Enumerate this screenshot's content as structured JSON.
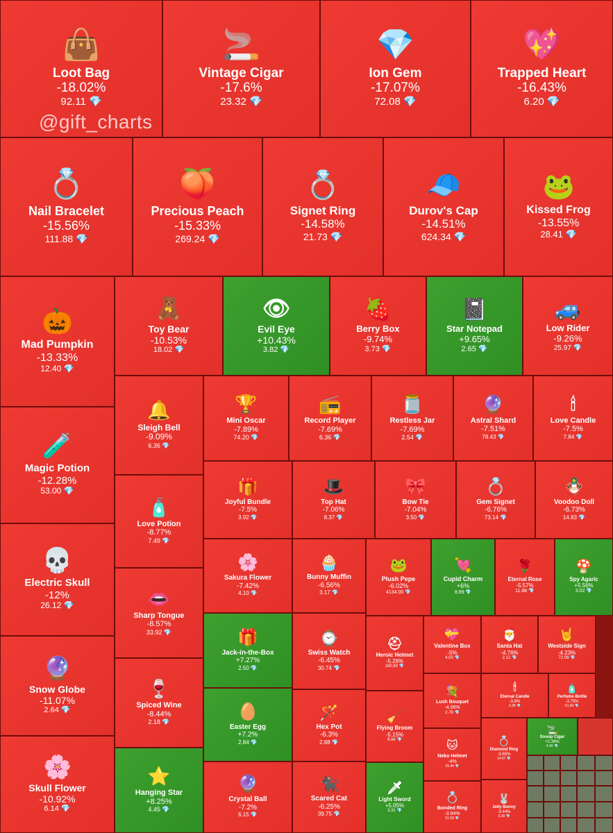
{
  "watermark": "@gift_charts",
  "colors": {
    "negative": "#e3302a",
    "positive": "#2f8f24",
    "currency_icon": "#6fd3ff"
  },
  "currency_glyph": "💎",
  "chart_data": {
    "type": "treemap",
    "title": "",
    "metric": "change_percent",
    "items": [
      {
        "name": "Loot Bag",
        "change": "-18.02%",
        "price": "92.11",
        "icon": "👜",
        "trend": "neg"
      },
      {
        "name": "Vintage Cigar",
        "change": "-17.6%",
        "price": "23.32",
        "icon": "🚬",
        "trend": "neg"
      },
      {
        "name": "Ion Gem",
        "change": "-17.07%",
        "price": "72.08",
        "icon": "💎",
        "trend": "neg"
      },
      {
        "name": "Trapped Heart",
        "change": "-16.43%",
        "price": "6.20",
        "icon": "💖",
        "trend": "neg"
      },
      {
        "name": "Nail Bracelet",
        "change": "-15.56%",
        "price": "111.88",
        "icon": "💍",
        "trend": "neg"
      },
      {
        "name": "Precious Peach",
        "change": "-15.33%",
        "price": "269.24",
        "icon": "🍑",
        "trend": "neg"
      },
      {
        "name": "Signet Ring",
        "change": "-14.58%",
        "price": "21.73",
        "icon": "💍",
        "trend": "neg"
      },
      {
        "name": "Durov's Cap",
        "change": "-14.51%",
        "price": "624.34",
        "icon": "🧢",
        "trend": "neg"
      },
      {
        "name": "Kissed Frog",
        "change": "-13.55%",
        "price": "28.41",
        "icon": "🐸",
        "trend": "neg"
      },
      {
        "name": "Mad Pumpkin",
        "change": "-13.33%",
        "price": "12.40",
        "icon": "🎃",
        "trend": "neg"
      },
      {
        "name": "Toy Bear",
        "change": "-10.53%",
        "price": "18.02",
        "icon": "🧸",
        "trend": "neg"
      },
      {
        "name": "Evil Eye",
        "change": "+10.43%",
        "price": "3.82",
        "icon": "👁",
        "trend": "pos"
      },
      {
        "name": "Berry Box",
        "change": "-9.74%",
        "price": "3.73",
        "icon": "🍓",
        "trend": "neg"
      },
      {
        "name": "Star Notepad",
        "change": "+9.65%",
        "price": "2.65",
        "icon": "📓",
        "trend": "pos"
      },
      {
        "name": "Low Rider",
        "change": "-9.26%",
        "price": "25.97",
        "icon": "🚙",
        "trend": "neg"
      },
      {
        "name": "Magic Potion",
        "change": "-12.28%",
        "price": "53.00",
        "icon": "🧪",
        "trend": "neg"
      },
      {
        "name": "Sleigh Bell",
        "change": "-9.09%",
        "price": "6.36",
        "icon": "🔔",
        "trend": "neg"
      },
      {
        "name": "Mini Oscar",
        "change": "-7.89%",
        "price": "74.20",
        "icon": "🏆",
        "trend": "neg"
      },
      {
        "name": "Record Player",
        "change": "-7.69%",
        "price": "6.36",
        "icon": "📻",
        "trend": "neg"
      },
      {
        "name": "Restless Jar",
        "change": "-7.69%",
        "price": "2.54",
        "icon": "🫙",
        "trend": "neg"
      },
      {
        "name": "Astral Shard",
        "change": "-7.51%",
        "price": "78.43",
        "icon": "🔮",
        "trend": "neg"
      },
      {
        "name": "Love Candle",
        "change": "-7.5%",
        "price": "7.84",
        "icon": "🕯",
        "trend": "neg"
      },
      {
        "name": "Love Potion",
        "change": "-8.77%",
        "price": "7.49",
        "icon": "🧴",
        "trend": "neg"
      },
      {
        "name": "Joyful Bundle",
        "change": "-7.5%",
        "price": "3.92",
        "icon": "🎁",
        "trend": "neg"
      },
      {
        "name": "Top Hat",
        "change": "-7.06%",
        "price": "8.37",
        "icon": "🎩",
        "trend": "neg"
      },
      {
        "name": "Bow Tie",
        "change": "-7.04%",
        "price": "3.50",
        "icon": "🎀",
        "trend": "neg"
      },
      {
        "name": "Gem Signet",
        "change": "-6.76%",
        "price": "73.14",
        "icon": "💍",
        "trend": "neg"
      },
      {
        "name": "Voodoo Doll",
        "change": "-6.73%",
        "price": "14.83",
        "icon": "🪆",
        "trend": "neg"
      },
      {
        "name": "Electric Skull",
        "change": "-12%",
        "price": "26.12",
        "icon": "💀",
        "trend": "neg"
      },
      {
        "name": "Sharp Tongue",
        "change": "-8.57%",
        "price": "33.92",
        "icon": "👄",
        "trend": "neg"
      },
      {
        "name": "Sakura Flower",
        "change": "-7.42%",
        "price": "4.10",
        "icon": "🌸",
        "trend": "neg"
      },
      {
        "name": "Bunny Muffin",
        "change": "-6.56%",
        "price": "3.17",
        "icon": "🧁",
        "trend": "neg"
      },
      {
        "name": "Plush Pepe",
        "change": "-6.02%",
        "price": "4134.00",
        "icon": "🐸",
        "trend": "neg"
      },
      {
        "name": "Cupid Charm",
        "change": "+6%",
        "price": "8.99",
        "icon": "💘",
        "trend": "pos"
      },
      {
        "name": "Eternal Rose",
        "change": "-5.57%",
        "price": "11.88",
        "icon": "🌹",
        "trend": "neg"
      },
      {
        "name": "Spy Agaric",
        "change": "+5.56%",
        "price": "3.02",
        "icon": "🍄",
        "trend": "pos"
      },
      {
        "name": "Snow Globe",
        "change": "-11.07%",
        "price": "2.64",
        "icon": "🔮",
        "trend": "neg"
      },
      {
        "name": "Spiced Wine",
        "change": "-8.44%",
        "price": "2.18",
        "icon": "🍷",
        "trend": "neg"
      },
      {
        "name": "Jack-in-the-Box",
        "change": "+7.27%",
        "price": "2.50",
        "icon": "🎁",
        "trend": "pos"
      },
      {
        "name": "Swiss Watch",
        "change": "-6.45%",
        "price": "30.74",
        "icon": "⌚",
        "trend": "neg"
      },
      {
        "name": "Heroic Helmet",
        "change": "-5.26%",
        "price": "180.80",
        "icon": "⛑",
        "trend": "neg"
      },
      {
        "name": "Valentine Box",
        "change": "-5%",
        "price": "4.03",
        "icon": "💝",
        "trend": "neg"
      },
      {
        "name": "Santa Hat",
        "change": "-4.76%",
        "price": "2.12",
        "icon": "🎅",
        "trend": "neg"
      },
      {
        "name": "Westside Sign",
        "change": "-4.23%",
        "price": "72.08",
        "icon": "🤘",
        "trend": "neg"
      },
      {
        "name": "Easter Egg",
        "change": "+7.2%",
        "price": "2.84",
        "icon": "🥚",
        "trend": "pos"
      },
      {
        "name": "Hex Pot",
        "change": "-6.3%",
        "price": "2.88",
        "icon": "🪄",
        "trend": "neg"
      },
      {
        "name": "Lush Bouquet",
        "change": "-4.06%",
        "price": "2.76",
        "icon": "💐",
        "trend": "neg"
      },
      {
        "name": "Eternal Candle",
        "change": "-3.8%",
        "price": "3.38",
        "icon": "🕯",
        "trend": "neg"
      },
      {
        "name": "Perfume Bottle",
        "change": "-3.75%",
        "price": "61.60",
        "icon": "🧴",
        "trend": "neg"
      },
      {
        "name": "Flying Broom",
        "change": "-5.15%",
        "price": "6.84",
        "icon": "🧹",
        "trend": "neg"
      },
      {
        "name": "Neko Helmet",
        "change": "-4%",
        "price": "25.44",
        "icon": "🐱",
        "trend": "neg"
      },
      {
        "name": "Diamond Ring",
        "change": "-3.65%",
        "price": "14.67",
        "icon": "💍",
        "trend": "neg"
      },
      {
        "name": "Snoop Cigar",
        "change": "+2.38%",
        "price": "4.30",
        "icon": "🚬",
        "trend": "pos"
      },
      {
        "name": "Skull Flower",
        "change": "-10.92%",
        "price": "6.14",
        "icon": "🌸",
        "trend": "neg"
      },
      {
        "name": "Hanging Star",
        "change": "+8.25%",
        "price": "4.45",
        "icon": "⭐",
        "trend": "pos"
      },
      {
        "name": "Crystal Ball",
        "change": "-7.2%",
        "price": "6.15",
        "icon": "🔮",
        "trend": "neg"
      },
      {
        "name": "Scared Cat",
        "change": "-6.25%",
        "price": "39.75",
        "icon": "🐈‍⬛",
        "trend": "neg"
      },
      {
        "name": "Light Sword",
        "change": "+5.05%",
        "price": "3.31",
        "icon": "🗡",
        "trend": "pos"
      },
      {
        "name": "Bonded Ring",
        "change": "-3.94%",
        "price": "51.93",
        "icon": "💍",
        "trend": "neg"
      },
      {
        "name": "Jelly Bunny",
        "change": "-3.44%",
        "price": "3.38",
        "icon": "🐰",
        "trend": "neg"
      }
    ]
  }
}
